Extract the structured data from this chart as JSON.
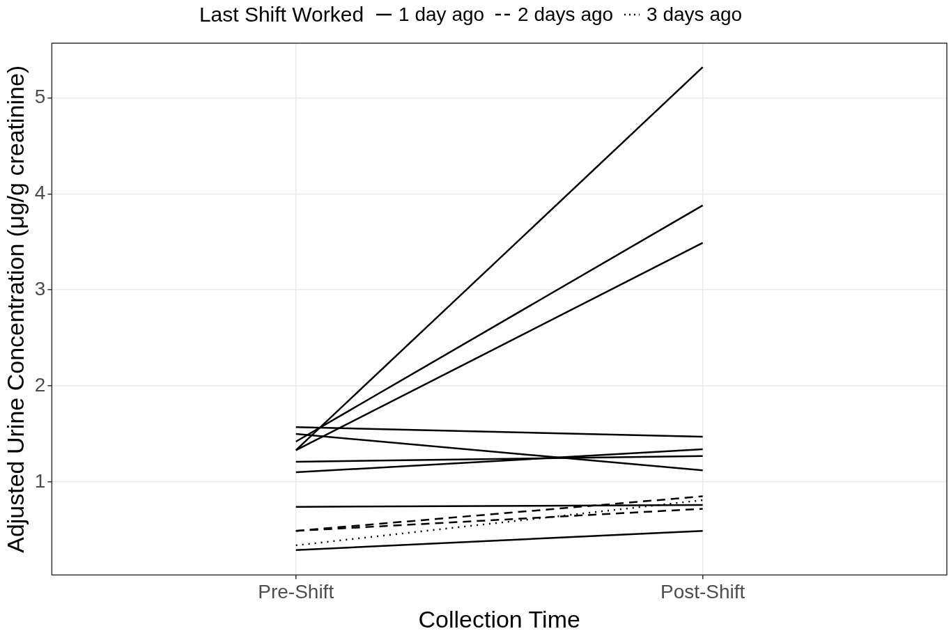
{
  "chart_data": {
    "type": "line",
    "xlabel": "Collection Time",
    "ylabel": "Adjusted Urine Concentration (μg/g creatinine)",
    "legend_title": "Last Shift Worked",
    "legend": "top",
    "grid": true,
    "marker": "none",
    "categories": [
      "Pre-Shift",
      "Post-Shift"
    ],
    "ylim": [
      0.03,
      5.57
    ],
    "yticks": [
      1,
      2,
      3,
      4,
      5
    ],
    "series": [
      {
        "name": "1 day ago",
        "color": "#000000",
        "line_style": "solid",
        "values": [
          1.33,
          5.32
        ]
      },
      {
        "color": "#000000",
        "line_style": "solid",
        "values": [
          1.42,
          3.88
        ]
      },
      {
        "color": "#000000",
        "line_style": "solid",
        "values": [
          1.33,
          3.49
        ]
      },
      {
        "color": "#000000",
        "line_style": "solid",
        "values": [
          1.57,
          1.47
        ]
      },
      {
        "color": "#000000",
        "line_style": "solid",
        "values": [
          1.5,
          1.12
        ]
      },
      {
        "color": "#000000",
        "line_style": "solid",
        "values": [
          1.21,
          1.27
        ]
      },
      {
        "color": "#000000",
        "line_style": "solid",
        "values": [
          1.1,
          1.34
        ]
      },
      {
        "color": "#000000",
        "line_style": "solid",
        "values": [
          0.74,
          0.76
        ]
      },
      {
        "color": "#000000",
        "line_style": "solid",
        "values": [
          0.29,
          0.49
        ]
      },
      {
        "name": "2 days ago",
        "color": "#000000",
        "line_style": "dashed",
        "values": [
          0.49,
          0.85
        ]
      },
      {
        "color": "#000000",
        "line_style": "dashed",
        "values": [
          0.49,
          0.72
        ]
      },
      {
        "name": "3 days ago",
        "color": "#000000",
        "line_style": "dotted",
        "values": [
          0.34,
          0.81
        ]
      }
    ]
  }
}
